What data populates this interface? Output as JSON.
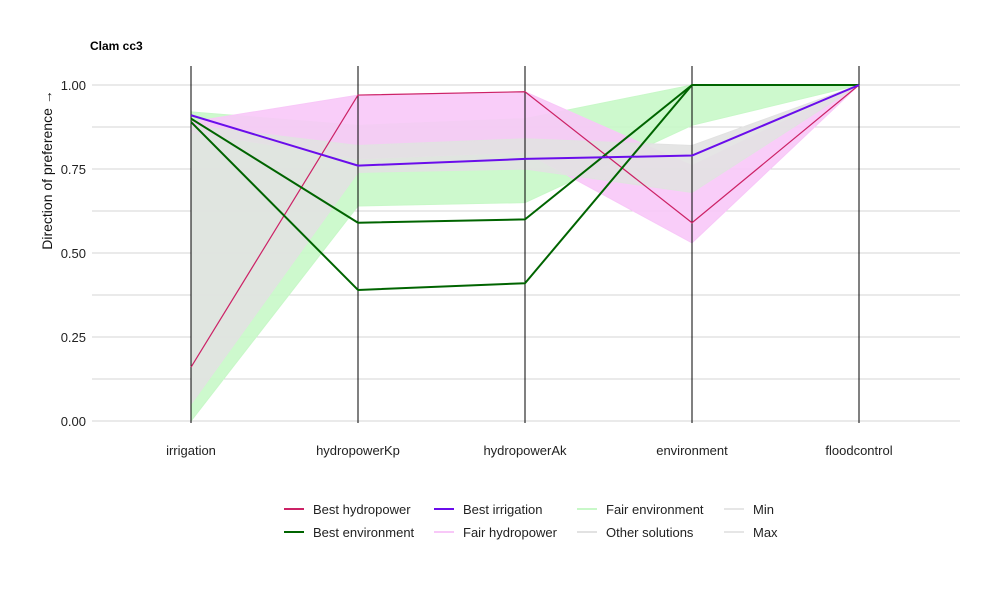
{
  "chart_data": {
    "type": "line",
    "subtype": "parallel-coordinates",
    "title": "Clam cc3",
    "ylabel": "Direction of preference →",
    "ylim": [
      0,
      1
    ],
    "y_ticks": [
      "0.00",
      "0.25",
      "0.50",
      "0.75",
      "1.00"
    ],
    "y_tick_values": [
      0,
      0.25,
      0.5,
      0.75,
      1.0
    ],
    "categories": [
      "irrigation",
      "hydropowerKp",
      "hydropowerAk",
      "environment",
      "floodcontrol"
    ],
    "grid": true,
    "legend_position": "bottom",
    "colors": {
      "best_hydropower": "#CC2266",
      "best_environment": "#006400",
      "best_irrigation": "#6A0DEB",
      "fair_environment": "#C8F8C8",
      "fair_hydropower": "#F8C8F8",
      "other": "#E2E2E2",
      "min": "#E6E6E6",
      "max": "#E6E6E6"
    },
    "series": [
      {
        "name": "Best hydropower",
        "color_key": "best_hydropower",
        "width": 1.2,
        "values": [
          0.16,
          0.97,
          0.98,
          0.59,
          1.0
        ]
      },
      {
        "name": "Best environment",
        "color_key": "best_environment",
        "width": 2,
        "values": [
          0.89,
          0.39,
          0.41,
          1.0,
          1.0
        ]
      },
      {
        "name": "Best environment",
        "color_key": "best_environment",
        "width": 2,
        "values": [
          0.9,
          0.59,
          0.6,
          1.0,
          1.0
        ]
      },
      {
        "name": "Best irrigation",
        "color_key": "best_irrigation",
        "width": 2,
        "values": [
          0.91,
          0.76,
          0.78,
          0.79,
          1.0
        ]
      }
    ],
    "bands": [
      {
        "name": "Fair environment",
        "color_key": "fair_environment",
        "upper": [
          0.92,
          0.88,
          0.9,
          1.0,
          1.0
        ],
        "lower": [
          0.0,
          0.64,
          0.65,
          0.88,
          1.0
        ]
      },
      {
        "name": "Fair hydropower",
        "color_key": "fair_hydropower",
        "upper": [
          0.89,
          0.97,
          0.98,
          0.76,
          1.0
        ],
        "lower": [
          0.86,
          0.78,
          0.8,
          0.53,
          1.0
        ]
      },
      {
        "name": "Other solutions",
        "color_key": "other",
        "upper": [
          0.88,
          0.82,
          0.84,
          0.82,
          1.0
        ],
        "lower": [
          0.05,
          0.74,
          0.75,
          0.68,
          1.0
        ]
      }
    ],
    "legend": [
      {
        "label": "Best hydropower",
        "color_key": "best_hydropower"
      },
      {
        "label": "Best environment",
        "color_key": "best_environment"
      },
      {
        "label": "Best irrigation",
        "color_key": "best_irrigation"
      },
      {
        "label": "Fair hydropower",
        "color_key": "fair_hydropower"
      },
      {
        "label": "Fair environment",
        "color_key": "fair_environment"
      },
      {
        "label": "Other solutions",
        "color_key": "other"
      },
      {
        "label": "Min",
        "color_key": "min"
      },
      {
        "label": "Max",
        "color_key": "max"
      }
    ]
  }
}
